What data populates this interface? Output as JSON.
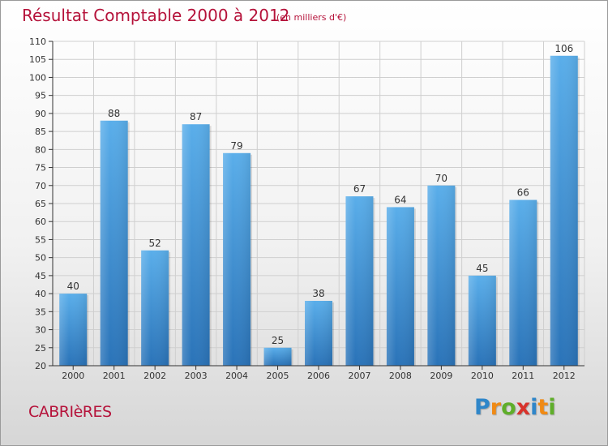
{
  "chart_data": {
    "type": "bar",
    "title": "Résultat Comptable 2000 à 2012",
    "subtitle": "(en milliers d'€)",
    "categories": [
      "2000",
      "2001",
      "2002",
      "2003",
      "2004",
      "2005",
      "2006",
      "2007",
      "2008",
      "2009",
      "2010",
      "2011",
      "2012"
    ],
    "values": [
      40,
      88,
      52,
      87,
      79,
      25,
      38,
      67,
      64,
      70,
      45,
      66,
      106
    ],
    "ylim": [
      20,
      110
    ],
    "yticks": [
      20,
      25,
      30,
      35,
      40,
      45,
      50,
      55,
      60,
      65,
      70,
      75,
      80,
      85,
      90,
      95,
      100,
      105,
      110
    ],
    "grid": true,
    "bar_color": "#3d8fd6",
    "legend": "none"
  },
  "footer": {
    "commune": "CABRIèRES",
    "logo_letters": [
      {
        "ch": "P",
        "color": "#2f86c9"
      },
      {
        "ch": "r",
        "color": "#f08a14"
      },
      {
        "ch": "o",
        "color": "#5fae2a"
      },
      {
        "ch": "x",
        "color": "#d8332c"
      },
      {
        "ch": "i",
        "color": "#2f86c9"
      },
      {
        "ch": "t",
        "color": "#f08a14"
      },
      {
        "ch": "i",
        "color": "#5fae2a"
      }
    ]
  },
  "colors": {
    "accent": "#b5123a",
    "axis": "#333333",
    "grid": "#cfcfcf"
  }
}
